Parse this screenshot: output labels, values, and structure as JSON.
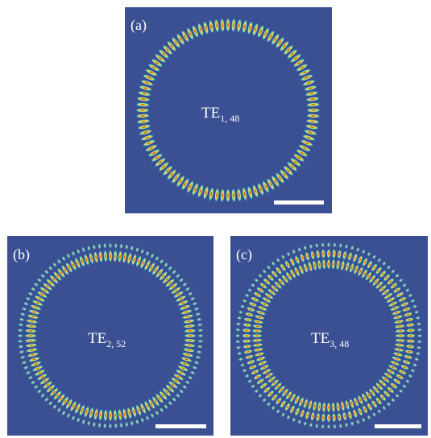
{
  "panels": [
    {
      "label": "(a)",
      "mode": "TE",
      "subscript": "1, 48"
    },
    {
      "label": "(b)",
      "mode": "TE",
      "subscript": "2, 52"
    },
    {
      "label": "(c)",
      "mode": "TE",
      "subscript": "3, 48"
    }
  ]
}
